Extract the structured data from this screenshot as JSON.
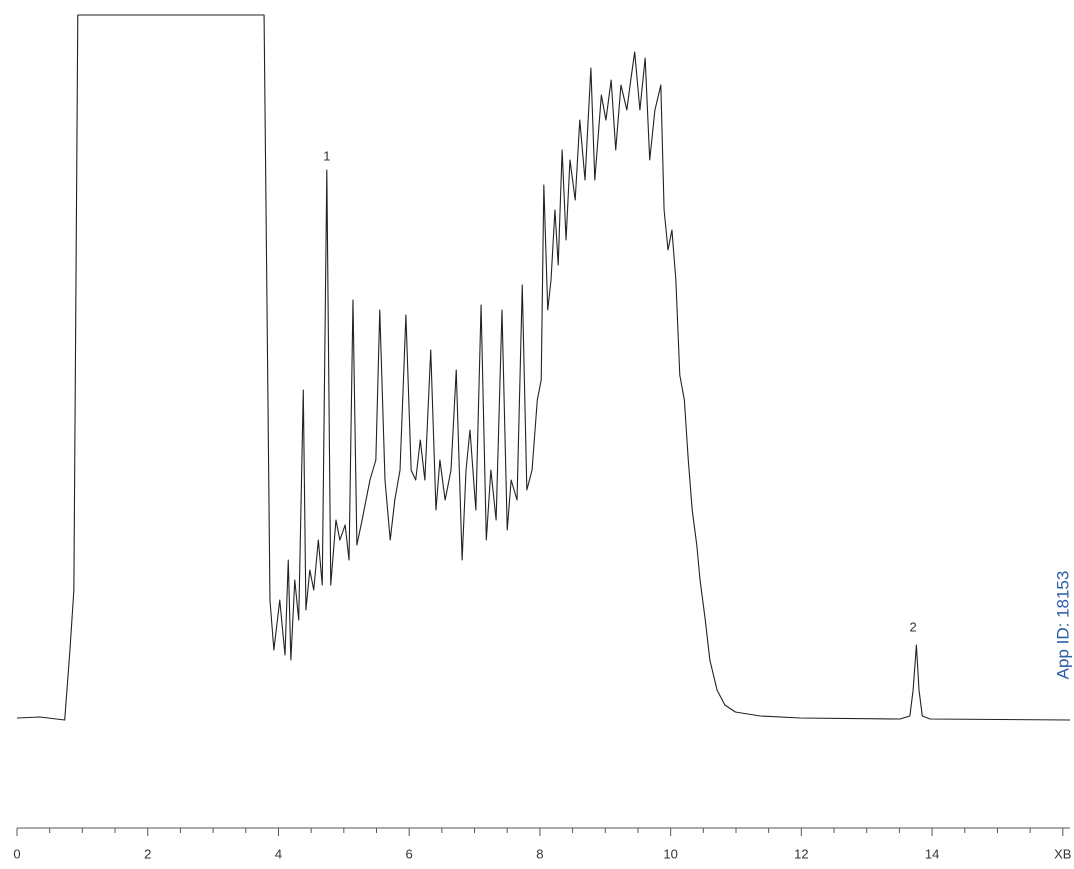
{
  "chart_data": {
    "type": "line",
    "x": [
      0,
      0.35,
      0.73,
      0.81,
      0.87,
      0.93,
      3.78,
      3.87,
      3.93,
      4.02,
      4.1,
      4.15,
      4.19,
      4.25,
      4.31,
      4.38,
      4.42,
      4.48,
      4.54,
      4.61,
      4.67,
      4.74,
      4.8,
      4.88,
      4.94,
      5.02,
      5.08,
      5.14,
      5.2,
      5.28,
      5.4,
      5.49,
      5.55,
      5.63,
      5.71,
      5.78,
      5.86,
      5.95,
      6.03,
      6.1,
      6.17,
      6.24,
      6.33,
      6.41,
      6.47,
      6.55,
      6.64,
      6.72,
      6.81,
      6.87,
      6.93,
      7.02,
      7.1,
      7.18,
      7.25,
      7.33,
      7.42,
      7.5,
      7.56,
      7.65,
      7.73,
      7.8,
      7.88,
      7.96,
      8.02,
      8.06,
      8.12,
      8.17,
      8.23,
      8.28,
      8.34,
      8.4,
      8.46,
      8.54,
      8.61,
      8.69,
      8.78,
      8.84,
      8.94,
      9.01,
      9.09,
      9.16,
      9.24,
      9.33,
      9.39,
      9.45,
      9.53,
      9.61,
      9.68,
      9.76,
      9.85,
      9.9,
      9.96,
      10.02,
      10.08,
      10.14,
      10.21,
      10.27,
      10.33,
      10.4,
      10.45,
      10.53,
      10.6,
      10.71,
      10.83,
      10.99,
      11.37,
      11.98,
      13.51,
      13.66,
      13.71,
      13.76,
      13.8,
      13.85,
      13.97,
      16.11
    ],
    "values": [
      2,
      3,
      0,
      70,
      130,
      705,
      705,
      120,
      70,
      120,
      65,
      160,
      60,
      140,
      100,
      330,
      110,
      150,
      130,
      180,
      135,
      550,
      135,
      200,
      180,
      195,
      160,
      420,
      175,
      200,
      240,
      260,
      410,
      240,
      180,
      220,
      250,
      405,
      250,
      240,
      280,
      240,
      370,
      210,
      260,
      220,
      250,
      350,
      160,
      250,
      290,
      210,
      415,
      180,
      250,
      200,
      410,
      190,
      240,
      220,
      435,
      230,
      250,
      320,
      340,
      535,
      410,
      440,
      510,
      455,
      570,
      480,
      560,
      520,
      600,
      540,
      652,
      540,
      625,
      600,
      640,
      570,
      635,
      610,
      640,
      668,
      610,
      662,
      560,
      610,
      635,
      510,
      470,
      490,
      440,
      345,
      320,
      260,
      210,
      175,
      140,
      100,
      60,
      30,
      15,
      8,
      4,
      2,
      1,
      4,
      30,
      75,
      30,
      4,
      1,
      0
    ],
    "color": "#222222",
    "xlim": [
      0,
      16.11
    ],
    "ylim": [
      -85,
      705
    ],
    "xticks": [
      0,
      2,
      4,
      6,
      8,
      10,
      12,
      14,
      {
        "value": 16,
        "label": "XB"
      }
    ],
    "xminorticks": [
      0.5,
      1,
      1.5,
      2.5,
      3,
      3.5,
      4.5,
      5,
      5.5,
      6.5,
      7,
      7.5,
      8.5,
      9,
      9.5,
      10.5,
      11,
      11.5,
      12.5,
      13,
      13.5,
      14.5,
      15,
      15.5
    ],
    "annotations": [
      {
        "text": "1",
        "x": 4.74,
        "y": 563
      },
      {
        "text": "2",
        "x": 13.71,
        "y": 92
      }
    ],
    "watermark": "App ID: 18153"
  }
}
